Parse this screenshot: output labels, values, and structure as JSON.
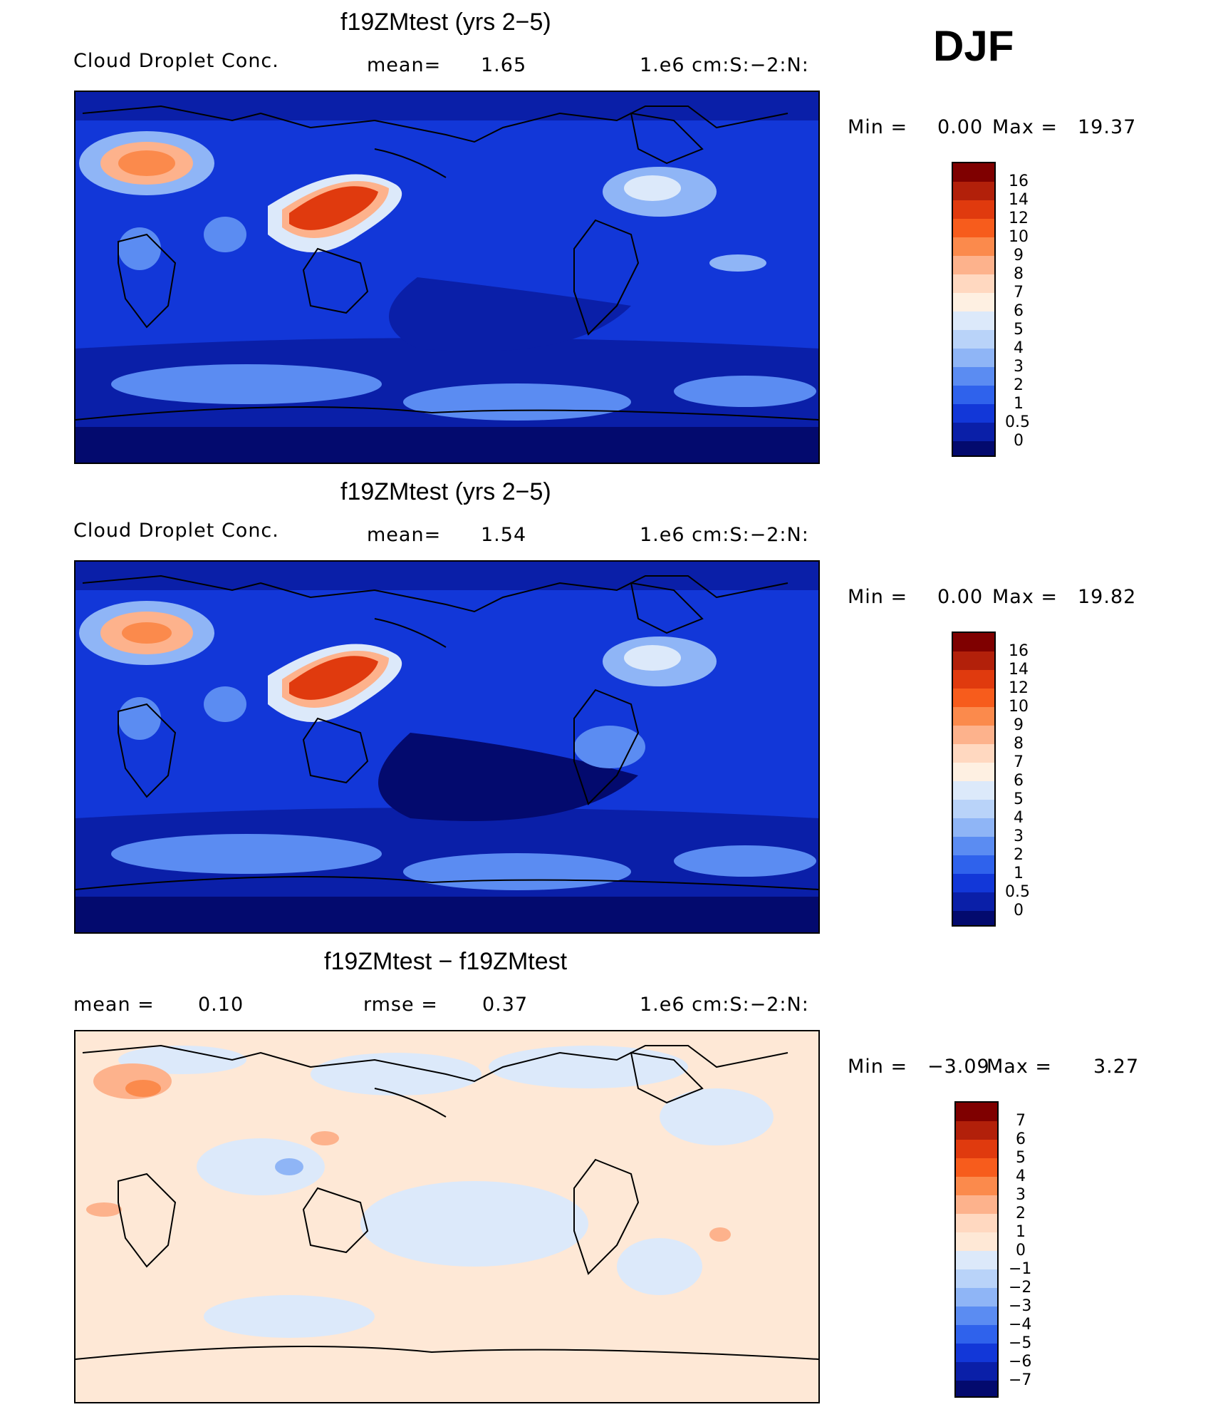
{
  "season": "DJF",
  "panels": [
    {
      "title": "f19ZMtest (yrs 2-5)",
      "left_label": "Cloud Droplet Conc.",
      "stat_label": "mean=",
      "stat_value": "1.65",
      "units": "1.e6 cm:S:-2:N:",
      "min_label": "Min =",
      "min_value": "0.00",
      "max_label": "Max =",
      "max_value": "19.37",
      "levels": [
        "16",
        "14",
        "12",
        "10",
        "9",
        "8",
        "7",
        "6",
        "5",
        "4",
        "3",
        "2",
        "1",
        "0.5",
        "0"
      ]
    },
    {
      "title": "f19ZMtest (yrs 2-5)",
      "left_label": "Cloud Droplet Conc.",
      "stat_label": "mean=",
      "stat_value": "1.54",
      "units": "1.e6 cm:S:-2:N:",
      "min_label": "Min =",
      "min_value": "0.00",
      "max_label": "Max =",
      "max_value": "19.82",
      "levels": [
        "16",
        "14",
        "12",
        "10",
        "9",
        "8",
        "7",
        "6",
        "5",
        "4",
        "3",
        "2",
        "1",
        "0.5",
        "0"
      ]
    },
    {
      "title": "f19ZMtest - f19ZMtest",
      "mean_label": "mean =",
      "mean_value": "0.10",
      "rmse_label": "rmse =",
      "rmse_value": "0.37",
      "units": "1.e6 cm:S:-2:N:",
      "min_label": "Min =",
      "min_value": "-3.09",
      "max_label": "Max =",
      "max_value": "3.27",
      "levels": [
        "7",
        "6",
        "5",
        "4",
        "3",
        "2",
        "1",
        "0",
        "-1",
        "-2",
        "-3",
        "-4",
        "-5",
        "-6",
        "-7"
      ]
    }
  ],
  "colors": {
    "abs_scale": [
      "#7f0000",
      "#b2200a",
      "#e03a0e",
      "#f75c1c",
      "#fb8a4c",
      "#fdb28c",
      "#ffd8c0",
      "#fef0e2",
      "#dce9fa",
      "#b9d3f9",
      "#8fb5f6",
      "#5b8cf2",
      "#2f62ec",
      "#1237d8",
      "#0a1fa8",
      "#030a6e"
    ],
    "diff_scale": [
      "#7f0000",
      "#b2200a",
      "#e03a0e",
      "#f75c1c",
      "#fb8a4c",
      "#fdb28c",
      "#ffd8c0",
      "#fee8d6",
      "#dce9fa",
      "#b9d3f9",
      "#8fb5f6",
      "#5b8cf2",
      "#2f62ec",
      "#1237d8",
      "#0a1fa8",
      "#030a6e"
    ]
  }
}
